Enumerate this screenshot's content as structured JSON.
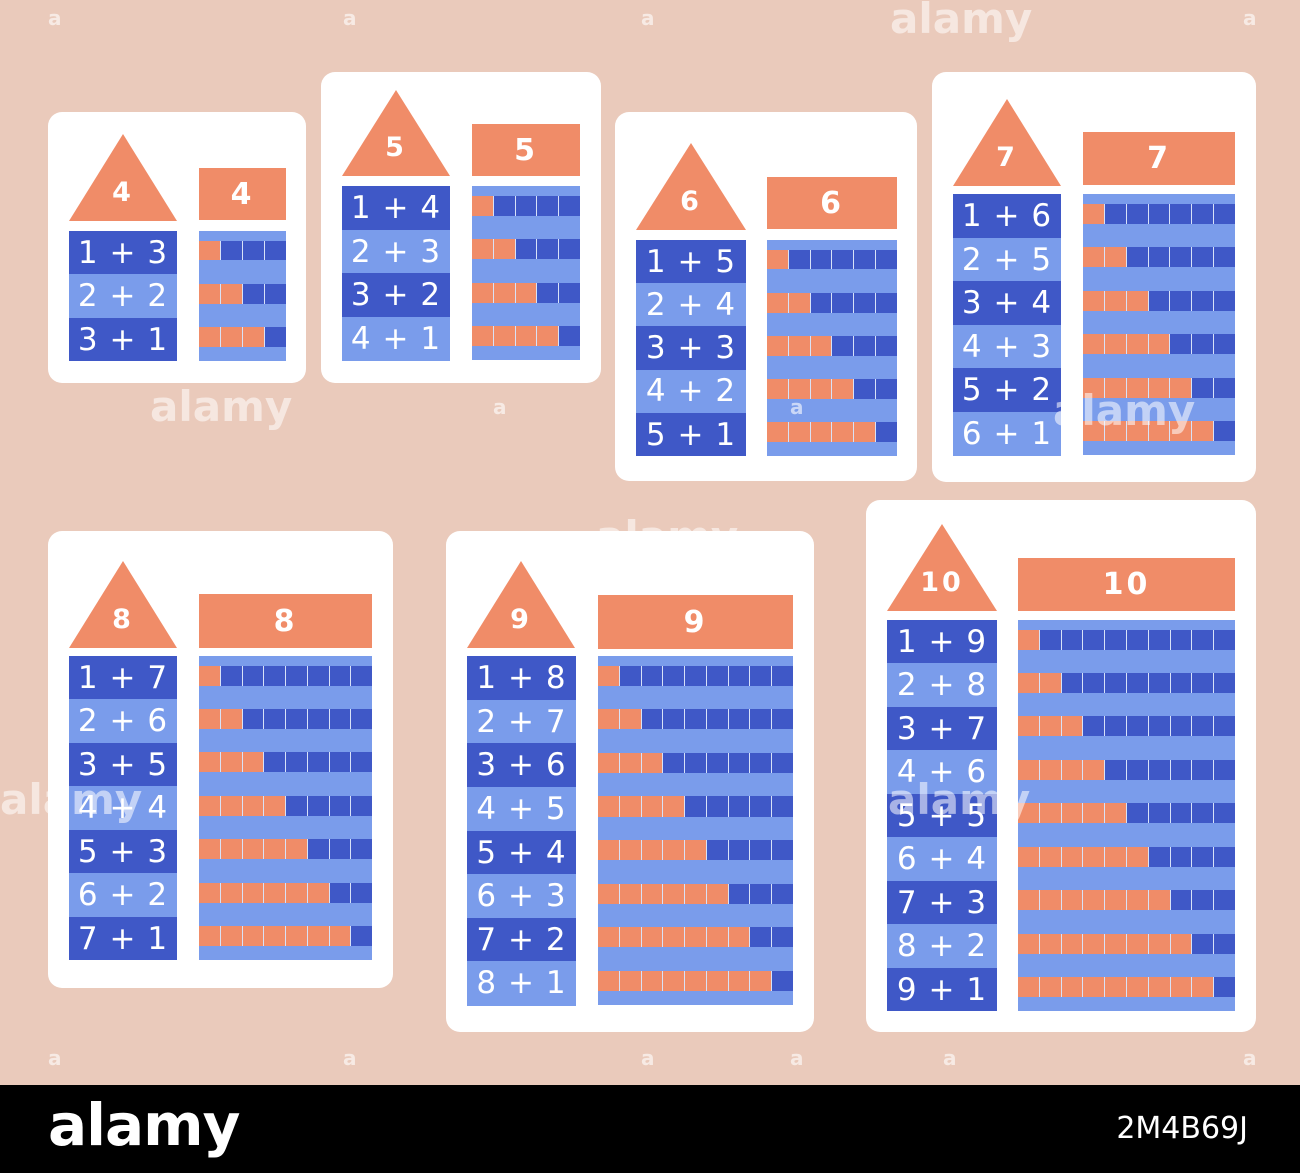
{
  "watermark": {
    "text": "alamy",
    "letter": "a"
  },
  "footer": {
    "logo": "alamy",
    "image_id": "2M4B69J"
  },
  "colors": {
    "background": "#EACABB",
    "card": "#ffffff",
    "orange": "#F08C68",
    "dark_blue": "#3F58C7",
    "light_blue": "#7A9CEB"
  },
  "cards": [
    {
      "number": "4",
      "equations": [
        "1 + 3",
        "2 + 2",
        "3 + 1"
      ],
      "orange_counts": [
        1,
        2,
        3
      ]
    },
    {
      "number": "5",
      "equations": [
        "1 + 4",
        "2 + 3",
        "3 + 2",
        "4 + 1"
      ],
      "orange_counts": [
        1,
        2,
        3,
        4
      ]
    },
    {
      "number": "6",
      "equations": [
        "1 + 5",
        "2 + 4",
        "3 + 3",
        "4 + 2",
        "5 + 1"
      ],
      "orange_counts": [
        1,
        2,
        3,
        4,
        5
      ]
    },
    {
      "number": "7",
      "equations": [
        "1 + 6",
        "2 + 5",
        "3 + 4",
        "4 + 3",
        "5 + 2",
        "6 + 1"
      ],
      "orange_counts": [
        1,
        2,
        3,
        4,
        5,
        6
      ]
    },
    {
      "number": "8",
      "equations": [
        "1 + 7",
        "2 + 6",
        "3 + 5",
        "4 + 4",
        "5 + 3",
        "6 + 2",
        "7 + 1"
      ],
      "orange_counts": [
        1,
        2,
        3,
        4,
        5,
        6,
        7
      ]
    },
    {
      "number": "9",
      "equations": [
        "1 + 8",
        "2 + 7",
        "3 + 6",
        "4 + 5",
        "5 + 4",
        "6 + 3",
        "7 + 2",
        "8 + 1"
      ],
      "orange_counts": [
        1,
        2,
        3,
        4,
        5,
        6,
        7,
        8
      ]
    },
    {
      "number": "10",
      "equations": [
        "1 + 9",
        "2 + 8",
        "3 + 7",
        "4 + 6",
        "5 + 5",
        "6 + 4",
        "7 + 3",
        "8 + 2",
        "9 + 1"
      ],
      "orange_counts": [
        1,
        2,
        3,
        4,
        5,
        6,
        7,
        8,
        9
      ]
    }
  ]
}
